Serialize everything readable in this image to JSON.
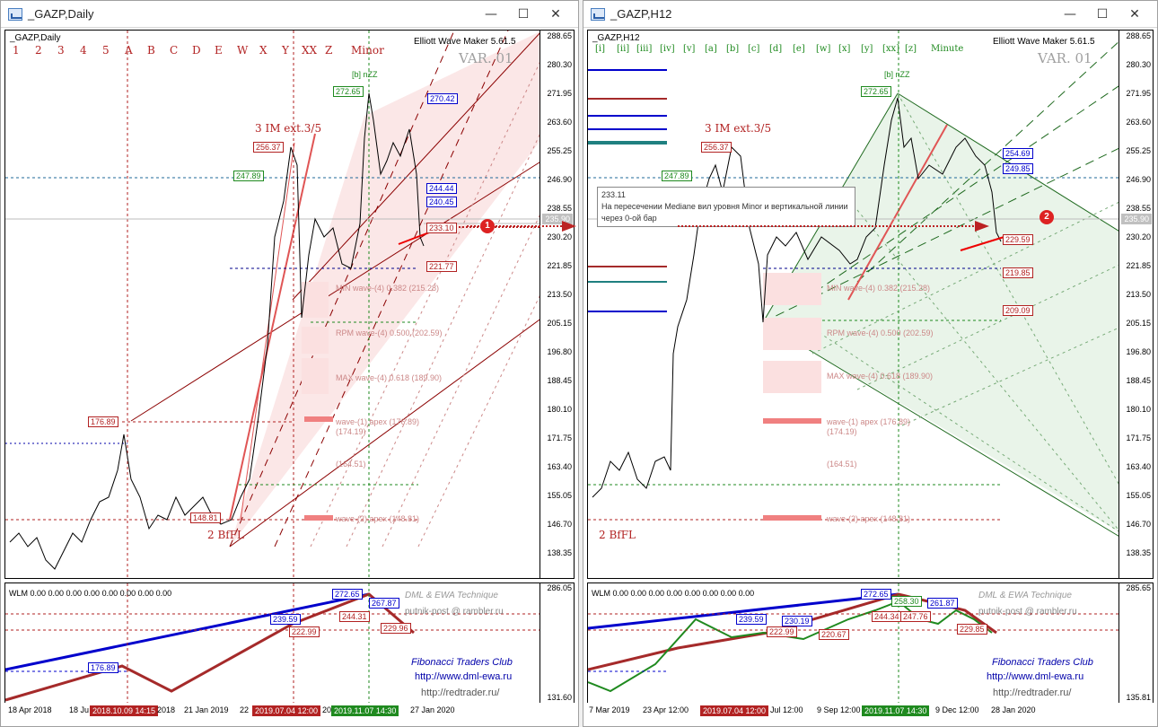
{
  "left": {
    "title": "_GAZP,Daily",
    "symbol_label": "_GAZP,Daily",
    "indicator": "Elliott Wave Maker 5.61.5",
    "var_label": "VAR. 01",
    "wave_letters": [
      "1",
      "2",
      "3",
      "4",
      "5",
      "A",
      "B",
      "C",
      "D",
      "E",
      "W",
      "X",
      "Y",
      "XX",
      "Z",
      "Minor"
    ],
    "price_axis": [
      "288.65",
      "280.30",
      "271.95",
      "263.60",
      "255.25",
      "246.90",
      "238.55",
      "230.20",
      "221.85",
      "213.50",
      "205.15",
      "196.80",
      "188.45",
      "180.10",
      "171.75",
      "163.40",
      "155.05",
      "146.70",
      "138.35"
    ],
    "current_price": "235.90",
    "wave_texts": {
      "impulse": "3 IM ext.3/5",
      "base": "2 BfFL",
      "top": "[b] nZZ"
    },
    "price_tags": {
      "p272": "272.65",
      "p256": "256.37",
      "p247": "247.89",
      "p176": "176.89",
      "p148": "148.81",
      "p270": "270.42",
      "p244": "244.44",
      "p240": "240.45",
      "p233": "233.10",
      "p221": "221.77"
    },
    "zone_texts": [
      "MIN wave-(4) 0.382 (215.28)",
      "RPM wave-(4) 0.500 (202.59)",
      "MAX wave-(4) 0.618 (189.90)",
      "wave-(1) apex (176.89)",
      "(174.19)",
      "(164.51)",
      "wave-(2) apex (148.81)"
    ],
    "osc": {
      "header": "WLM 0.00 0.00 0.00 0.00 0.00 0.00 0.00 0.00",
      "axis": [
        "286.05",
        "131.60"
      ],
      "tags": [
        "272.65",
        "267.87",
        "244.31",
        "239.59",
        "222.99",
        "229.96",
        "176.89"
      ],
      "brand1": "DML & EWA Technique",
      "brand2": "putnik-post @ rambler.ru",
      "brand3": "Fibonacci   Traders   Club",
      "brand4": "http://www.dml-ewa.ru",
      "brand5": "http://redtrader.ru/"
    },
    "dates": [
      "18 Apr 2018",
      "18 Ju",
      "2018.10.09 14:15",
      "2018",
      "21 Jan 2019",
      "22",
      "2019.07.04 12:00",
      "20",
      "2019.11.07 14:30",
      "27 Jan 2020"
    ]
  },
  "right": {
    "title": "_GAZP,H12",
    "symbol_label": "_GAZP,H12",
    "indicator": "Elliott Wave Maker 5.61.5",
    "var_label": "VAR. 01",
    "wave_letters": [
      "[i]",
      "[ii]",
      "[iii]",
      "[iv]",
      "[v]",
      "[a]",
      "[b]",
      "[c]",
      "[d]",
      "[e]",
      "[w]",
      "[x]",
      "[y]",
      "[xx]",
      "[z]",
      "Minute"
    ],
    "price_axis": [
      "288.65",
      "280.30",
      "271.95",
      "263.60",
      "255.25",
      "246.90",
      "238.55",
      "230.20",
      "221.85",
      "213.50",
      "205.15",
      "196.80",
      "188.45",
      "180.10",
      "171.75",
      "163.40",
      "155.05",
      "146.70",
      "138.35"
    ],
    "current_price": "235.90",
    "wave_texts": {
      "impulse": "3 IM ext.3/5",
      "base": "2 BfFL",
      "top": "[b] nZZ"
    },
    "price_tags": {
      "p272": "272.65",
      "p256": "256.37",
      "p247": "247.89",
      "p254": "254.69",
      "p249": "249.85",
      "p229": "229.59",
      "p219": "219.85",
      "p209": "209.09"
    },
    "zone_texts": [
      "MIN wave-(4) 0.382 (215.28)",
      "RPM wave-(4) 0.500 (202.59)",
      "MAX wave-(4) 0.618 (189.90)",
      "wave-(1) apex (176.89)",
      "(174.19)",
      "(164.51)",
      "wave-(2) apex (148.81)"
    ],
    "tooltip": [
      "233.11",
      "На пересечении Mediane вил уровня Minor и вертикальной линии",
      "через 0-ой бар"
    ],
    "osc": {
      "header": "WLM 0.00 0.00 0.00 0.00 0.00 0.00 0.00 0.00",
      "axis": [
        "285.65",
        "135.81"
      ],
      "tags": [
        "272.65",
        "258.30",
        "261.87",
        "244.34",
        "247.76",
        "239.59",
        "230.19",
        "222.99",
        "220.67",
        "229.85"
      ],
      "brand1": "DML & EWA Technique",
      "brand2": "putnik-post @ rambler.ru",
      "brand3": "Fibonacci   Traders   Club",
      "brand4": "http://www.dml-ewa.ru",
      "brand5": "http://redtrader.ru/"
    },
    "dates": [
      "7 Mar 2019",
      "23 Apr 12:00",
      "2019.07.04 12:00",
      "Jul 12:00",
      "9 Sep 12:00",
      "2019.11.07 14:30",
      "9 Dec 12:00",
      "28 Jan 2020"
    ]
  },
  "markers": [
    "1",
    "2"
  ],
  "window_buttons": {
    "minimize": "—",
    "maximize": "☐",
    "close": "✕"
  },
  "colors": {
    "wave_red": "#b22222",
    "wave_green": "#1f8a1f",
    "fork_red": "#f8d8d8",
    "fork_green": "#e6f2e6",
    "blue": "#0000cc"
  }
}
